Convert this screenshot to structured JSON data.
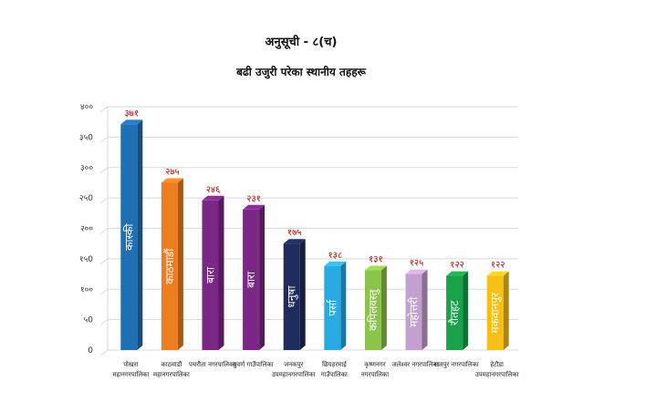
{
  "page_title": "अनुसूची - ८(च)",
  "chart_data": {
    "type": "bar",
    "title": "बढी उजुरी परेका स्थानीय तहहरू",
    "ylim": [
      0,
      400
    ],
    "yticks": [
      {
        "v": 0,
        "label": "0"
      },
      {
        "v": 50,
        "label": "५0"
      },
      {
        "v": 100,
        "label": "१००"
      },
      {
        "v": 150,
        "label": "१५0"
      },
      {
        "v": 200,
        "label": "२००"
      },
      {
        "v": 250,
        "label": "२५0"
      },
      {
        "v": 300,
        "label": "३००"
      },
      {
        "v": 350,
        "label": "३५0"
      },
      {
        "v": 400,
        "label": "४००"
      }
    ],
    "grid": true,
    "bars": [
      {
        "value": 371,
        "value_label": "३७१",
        "text": "कास्की",
        "cat": [
          "पोखरा",
          "महानगरपालिका"
        ],
        "color": "#1f6fb5"
      },
      {
        "value": 275,
        "value_label": "२७५",
        "text": "काठमाडौं",
        "cat": [
          "काठमाडौं",
          "महानगरपालिका"
        ],
        "color": "#ee7d22"
      },
      {
        "value": 246,
        "value_label": "२४६",
        "text": "बारा",
        "cat": [
          "पचरौता नगरपालिका"
        ],
        "color": "#7b2785"
      },
      {
        "value": 231,
        "value_label": "२३१",
        "text": "बारा",
        "cat": [
          "सुवर्ण गाउँपालिका"
        ],
        "color": "#7b2785"
      },
      {
        "value": 175,
        "value_label": "१७५",
        "text": "धनुषा",
        "cat": [
          "जनकपुर",
          "उपमहानगरपालिका"
        ],
        "color": "#1e2b5c"
      },
      {
        "value": 138,
        "value_label": "१३८",
        "text": "पर्सा",
        "cat": [
          "छिपहरमाई",
          "गाउँपालिका"
        ],
        "color": "#2aaae2"
      },
      {
        "value": 131,
        "value_label": "१३१",
        "text": "कपिलवस्तु",
        "cat": [
          "कृष्णनगर",
          "नगरपालिका"
        ],
        "color": "#8cc34a"
      },
      {
        "value": 125,
        "value_label": "१२५",
        "text": "महोत्तरी",
        "cat": [
          "जलेश्वर नगरपालिका"
        ],
        "color": "#c3a0cf"
      },
      {
        "value": 122,
        "value_label": "१२२",
        "text": "रौतहट",
        "cat": [
          "राजपुर नगरपालिका"
        ],
        "color": "#1aa24a"
      },
      {
        "value": 122,
        "value_label": "१२२",
        "text": "मकवानपुर",
        "cat": [
          "हेटौडा",
          "उपमहानगरपालिका"
        ],
        "color": "#f6bf16"
      }
    ]
  }
}
